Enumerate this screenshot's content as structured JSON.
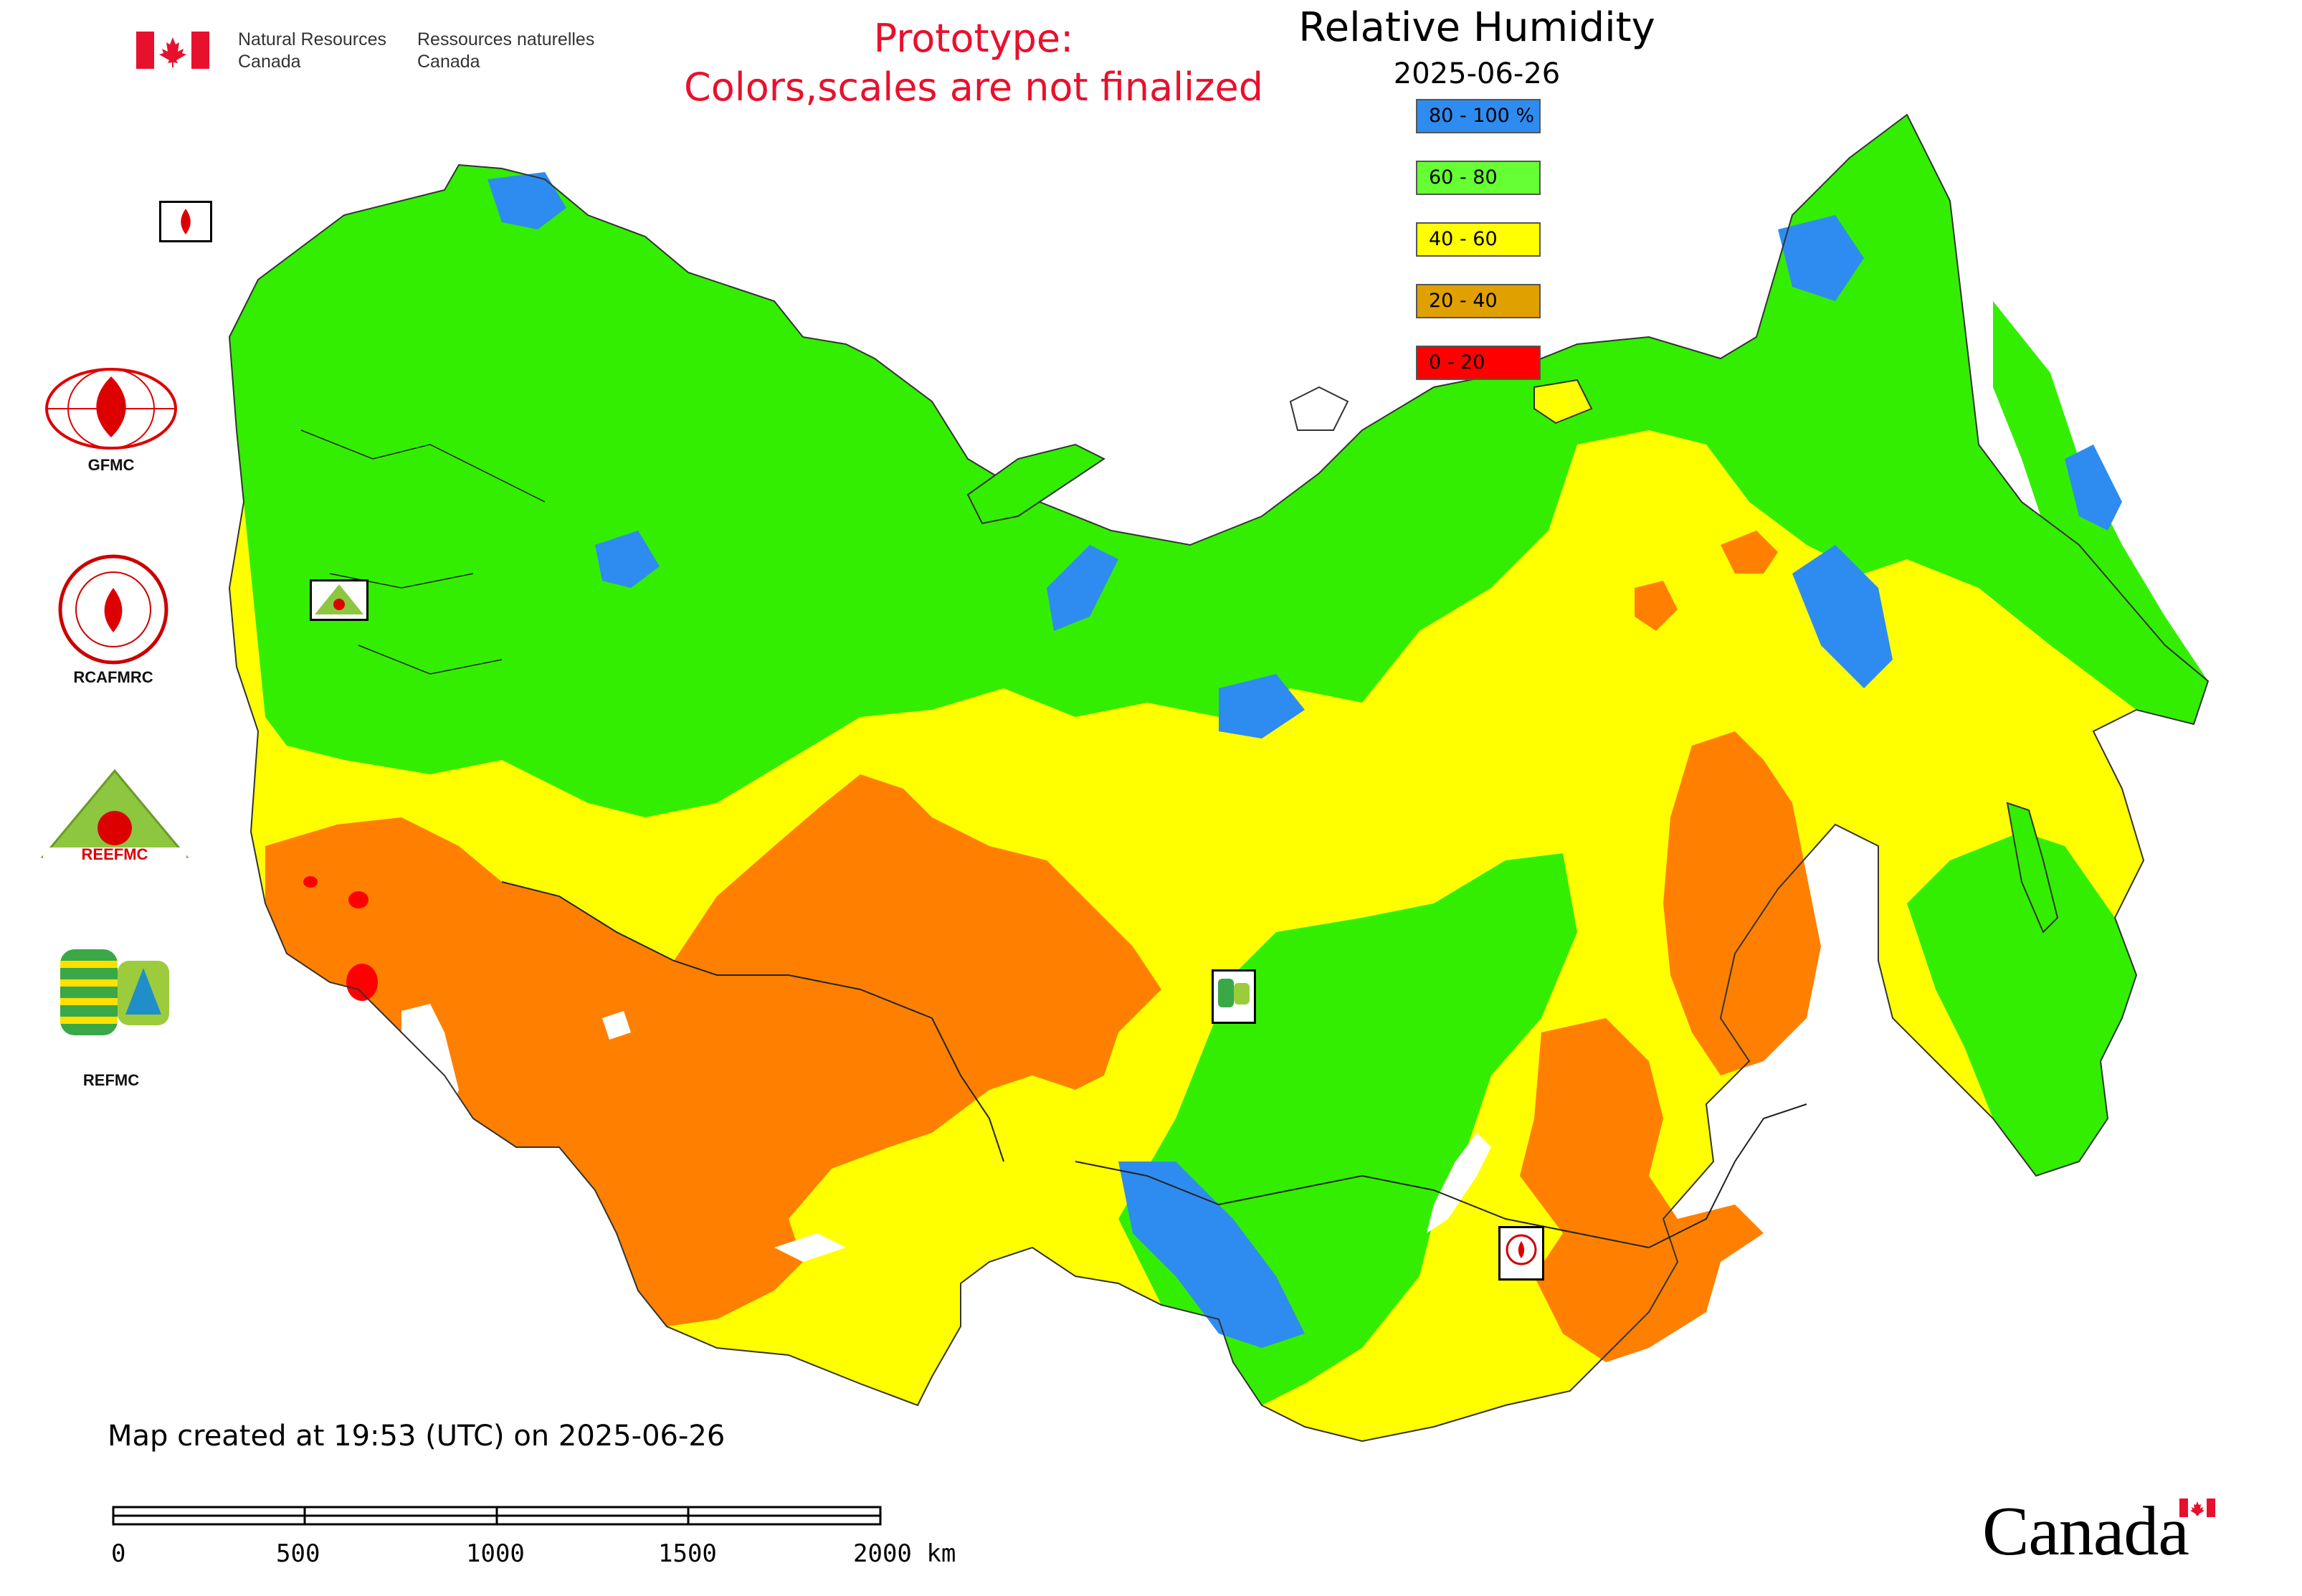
{
  "header": {
    "gov_en_1": "Natural Resources",
    "gov_en_2": "Canada",
    "gov_fr_1": "Ressources naturelles",
    "gov_fr_2": "Canada",
    "prototype_line1": "Prototype:",
    "prototype_line2": "Colors,scales are not finalized"
  },
  "legend": {
    "title": "Relative Humidity",
    "date": "2025-06-26",
    "classes": [
      {
        "label": "80 - 100 %",
        "color": "#2e8cf0"
      },
      {
        "label": "60 - 80",
        "color": "#66ff33"
      },
      {
        "label": "40 - 60",
        "color": "#ffff00"
      },
      {
        "label": "20 - 40",
        "color": "#e0a000"
      },
      {
        "label": "0 - 20",
        "color": "#ff0000"
      }
    ]
  },
  "map_colors": {
    "very_humid": "#2e8cf0",
    "humid": "#33ee00",
    "moderate": "#ffff00",
    "dry": "#ff8000",
    "very_dry": "#ff0000"
  },
  "logos": {
    "gfmc": "GFMC",
    "rcafmrc": "RCAFMRC",
    "reefmc": "REEFMC",
    "refmc": "REFMC"
  },
  "footer": {
    "created": "Map created at 19:53 (UTC) on 2025-06-26",
    "scale_ticks": [
      "0",
      "500",
      "1000",
      "1500",
      "2000 km"
    ],
    "wordmark": "Canada"
  }
}
